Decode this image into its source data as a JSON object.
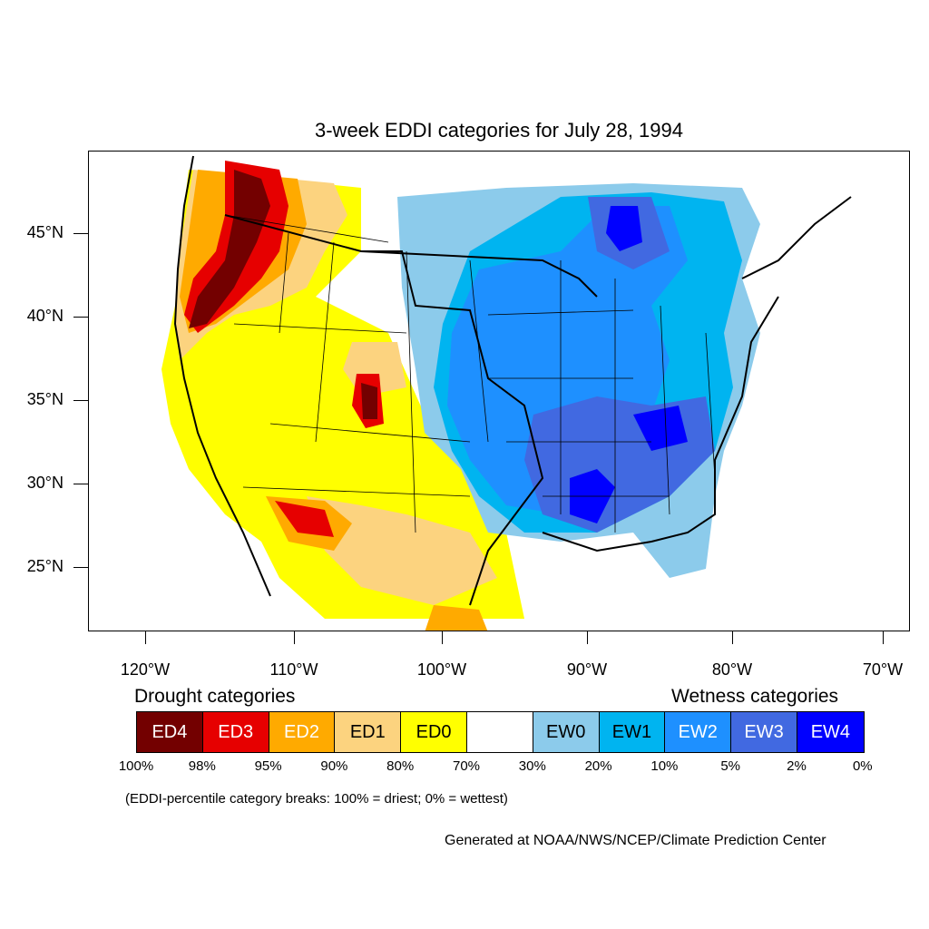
{
  "title": "3-week EDDI categories for July 28, 1994",
  "axes": {
    "lat_labels": [
      "45°N",
      "40°N",
      "35°N",
      "30°N",
      "25°N"
    ],
    "lon_labels": [
      "120°W",
      "110°W",
      "100°W",
      "90°W",
      "80°W",
      "70°W"
    ]
  },
  "legend": {
    "drought_heading": "Drought categories",
    "wetness_heading": "Wetness categories",
    "boxes": [
      {
        "label": "ED4",
        "color": "#730000",
        "text_color": "#ffffff"
      },
      {
        "label": "ED3",
        "color": "#e60000",
        "text_color": "#ffffff"
      },
      {
        "label": "ED2",
        "color": "#ffaa00",
        "text_color": "#ffffff"
      },
      {
        "label": "ED1",
        "color": "#fcd37f",
        "text_color": "#000000"
      },
      {
        "label": "ED0",
        "color": "#ffff00",
        "text_color": "#000000"
      },
      {
        "label": "",
        "color": "#ffffff",
        "text_color": "#000000"
      },
      {
        "label": "EW0",
        "color": "#8ccbeb",
        "text_color": "#000000"
      },
      {
        "label": "EW1",
        "color": "#00b4f0",
        "text_color": "#000000"
      },
      {
        "label": "EW2",
        "color": "#1e90ff",
        "text_color": "#ffffff"
      },
      {
        "label": "EW3",
        "color": "#4169e1",
        "text_color": "#ffffff"
      },
      {
        "label": "EW4",
        "color": "#0000ff",
        "text_color": "#ffffff"
      }
    ],
    "percent_breaks": [
      "100%",
      "98%",
      "95%",
      "90%",
      "80%",
      "70%",
      "30%",
      "20%",
      "10%",
      "5%",
      "2%",
      "0%"
    ]
  },
  "note": "(EDDI-percentile category breaks: 100% = driest; 0% = wettest)",
  "credit": "Generated at NOAA/NWS/NCEP/Climate Prediction Center"
}
